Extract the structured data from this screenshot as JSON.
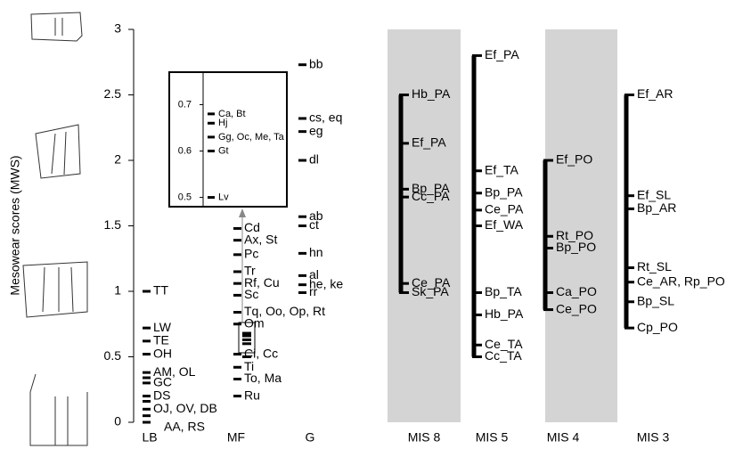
{
  "chart_data": {
    "type": "labeled-ticks",
    "ylabel": "Mesowear scores (MWS)",
    "ylim": [
      0,
      3
    ],
    "yticks": [
      0,
      0.5,
      1,
      1.5,
      2,
      2.5,
      3
    ],
    "groups": [
      {
        "name": "LB",
        "range_bar": false,
        "shaded": false,
        "points": [
          {
            "label": "TT",
            "value": 1.0
          },
          {
            "label": "LW",
            "value": 0.72
          },
          {
            "label": "TE",
            "value": 0.62
          },
          {
            "label": "OH",
            "value": 0.52
          },
          {
            "label": "AM, OL",
            "value": 0.38
          },
          {
            "label": "GC",
            "value": 0.3
          },
          {
            "label": "DS",
            "value": 0.2
          },
          {
            "label": "OJ, OV, DB",
            "value": 0.1
          },
          {
            "label": "AA, RS",
            "value": 0.0
          },
          {
            "label": null,
            "value": 0.05
          },
          {
            "label": null,
            "value": 0.16
          },
          {
            "label": null,
            "value": 0.34
          }
        ]
      },
      {
        "name": "MF",
        "range_bar": false,
        "shaded": false,
        "points": [
          {
            "label": "Cd",
            "value": 1.48
          },
          {
            "label": "Ax, St",
            "value": 1.39
          },
          {
            "label": "Pc",
            "value": 1.28
          },
          {
            "label": "Tr",
            "value": 1.15
          },
          {
            "label": "Rf, Cu",
            "value": 1.06
          },
          {
            "label": "Sc",
            "value": 0.97
          },
          {
            "label": "Tq, Oo, Op, Rt",
            "value": 0.84
          },
          {
            "label": "Om",
            "value": 0.75
          },
          {
            "label": "Ci, Cc",
            "value": 0.52
          },
          {
            "label": "Ti",
            "value": 0.42
          },
          {
            "label": "To, Ma",
            "value": 0.33
          },
          {
            "label": "Ru",
            "value": 0.2
          }
        ]
      },
      {
        "name": "G",
        "range_bar": false,
        "shaded": false,
        "points": [
          {
            "label": "bb",
            "value": 2.73
          },
          {
            "label": "cs, eq",
            "value": 2.32
          },
          {
            "label": "eg",
            "value": 2.22
          },
          {
            "label": "dl",
            "value": 2.0
          },
          {
            "label": "ab",
            "value": 1.57
          },
          {
            "label": "ct",
            "value": 1.5
          },
          {
            "label": "hn",
            "value": 1.29
          },
          {
            "label": "al",
            "value": 1.12
          },
          {
            "label": "he, ke",
            "value": 1.05
          },
          {
            "label": "rr",
            "value": 0.99
          }
        ]
      },
      {
        "name": "MIS 8",
        "range_bar": true,
        "shaded": true,
        "points": [
          {
            "label": "Hb_PA",
            "value": 2.5
          },
          {
            "label": "Ef_PA",
            "value": 2.13
          },
          {
            "label": "Bp_PA",
            "value": 1.78
          },
          {
            "label": "Cc_PA",
            "value": 1.72
          },
          {
            "label": "Ce_PA",
            "value": 1.06
          },
          {
            "label": "Sk_PA",
            "value": 0.99
          }
        ]
      },
      {
        "name": "MIS 5",
        "range_bar": true,
        "shaded": false,
        "points": [
          {
            "label": "Ef_PA",
            "value": 2.8
          },
          {
            "label": "Ef_TA",
            "value": 1.92
          },
          {
            "label": "Bp_PA",
            "value": 1.75
          },
          {
            "label": "Ce_PA",
            "value": 1.62
          },
          {
            "label": "Ef_WA",
            "value": 1.5
          },
          {
            "label": "Bp_TA",
            "value": 0.99
          },
          {
            "label": "Hb_PA",
            "value": 0.82
          },
          {
            "label": "Ce_TA",
            "value": 0.59
          },
          {
            "label": "Cc_TA",
            "value": 0.5
          }
        ]
      },
      {
        "name": "MIS 4",
        "range_bar": true,
        "shaded": true,
        "points": [
          {
            "label": "Ef_PO",
            "value": 2.0
          },
          {
            "label": "Rt_PO",
            "value": 1.42
          },
          {
            "label": "Bp_PO",
            "value": 1.33
          },
          {
            "label": "Ca_PO",
            "value": 0.99
          },
          {
            "label": "Ce_PO",
            "value": 0.86
          }
        ]
      },
      {
        "name": "MIS 3",
        "range_bar": true,
        "shaded": false,
        "points": [
          {
            "label": "Ef_AR",
            "value": 2.5
          },
          {
            "label": "Ef_SL",
            "value": 1.73
          },
          {
            "label": "Bp_AR",
            "value": 1.63
          },
          {
            "label": "Rt_SL",
            "value": 1.18
          },
          {
            "label": "Ce_AR, Rp_PO",
            "value": 1.07
          },
          {
            "label": "Bp_SL",
            "value": 0.92
          },
          {
            "label": "Cp_PO",
            "value": 0.72
          }
        ]
      }
    ],
    "inset": {
      "ylim": [
        0.48,
        0.77
      ],
      "yticks": [
        0.5,
        0.6,
        0.7
      ],
      "points": [
        {
          "label": "Ca, Bt",
          "value": 0.68
        },
        {
          "label": "Hj",
          "value": 0.66
        },
        {
          "label": "Gg, Oc, Me, Ta",
          "value": 0.63
        },
        {
          "label": "Gt",
          "value": 0.6
        },
        {
          "label": "Lv",
          "value": 0.5
        }
      ]
    }
  }
}
